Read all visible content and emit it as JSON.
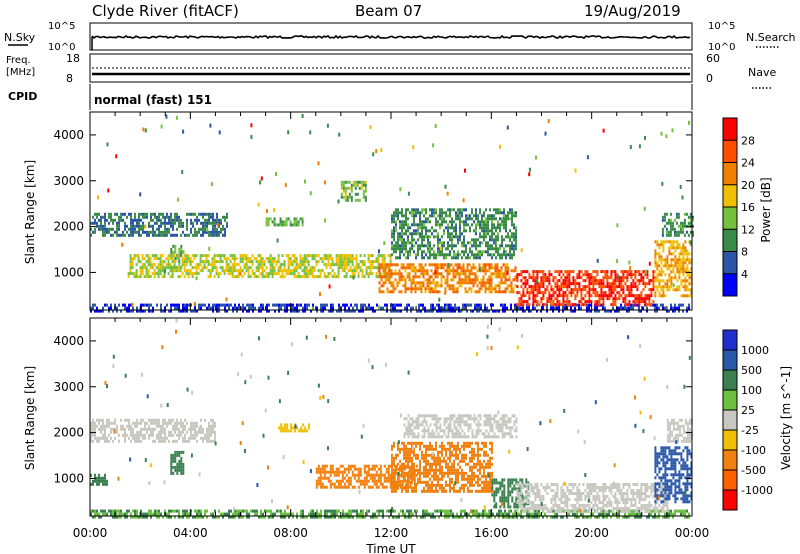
{
  "header": {
    "station": "Clyde River (fitACF)",
    "beam": "Beam 07",
    "date": "19/Aug/2019"
  },
  "panels": {
    "nsky": {
      "left_label": "N.Sky",
      "left_ticks": [
        "10^5",
        "10^0"
      ],
      "right_ticks": [
        "10^5",
        "10^0"
      ],
      "right_label": "N.Search"
    },
    "freq": {
      "left_label_1": "Freq.",
      "left_label_2": "[MHz]",
      "left_ticks": [
        "18",
        "8"
      ],
      "right_ticks": [
        "60",
        "0"
      ],
      "right_label": "Nave"
    },
    "cpid": {
      "left_label": "CPID",
      "mode_text": "normal (fast) 151"
    }
  },
  "colors": {
    "power": [
      "#0000ff",
      "#2c55a8",
      "#3a8a4a",
      "#76c040",
      "#f0c000",
      "#f08000",
      "#ff5000",
      "#ff0000"
    ],
    "velocity": [
      "#2030d0",
      "#2a58a8",
      "#3a8050",
      "#6cc040",
      "#c8c8c0",
      "#c8c8c0",
      "#f0c000",
      "#f08010",
      "#ff6000",
      "#ff0000"
    ]
  },
  "chart_data": [
    {
      "type": "heatmap",
      "name": "power",
      "ylabel": "Slant Range [km]",
      "yticks": [
        "1000",
        "2000",
        "3000",
        "4000"
      ],
      "ylim": [
        180,
        4500
      ],
      "xlim": [
        "00:00",
        "24:00"
      ],
      "colorbar_label": "Power [dB]",
      "colorbar_ticks": [
        "4",
        "8",
        "12",
        "16",
        "20",
        "24",
        "28"
      ],
      "colorbar_range": [
        0,
        32
      ],
      "regions": [
        {
          "t0": 0.0,
          "t1": 23.9,
          "r0": 180,
          "r1": 320,
          "v": 4
        },
        {
          "t0": 0.0,
          "t1": 5.5,
          "r0": 1800,
          "r1": 2300,
          "v": 8
        },
        {
          "t0": 3.2,
          "t1": 3.6,
          "r0": 1100,
          "r1": 1600,
          "v": 12
        },
        {
          "t0": 7.0,
          "t1": 8.5,
          "r0": 2050,
          "r1": 2200,
          "v": 12
        },
        {
          "t0": 10.0,
          "t1": 11.0,
          "r0": 2600,
          "r1": 3000,
          "v": 14
        },
        {
          "t0": 1.5,
          "t1": 12.0,
          "r0": 900,
          "r1": 1400,
          "v": 16
        },
        {
          "t0": 12.0,
          "t1": 17.0,
          "r0": 1300,
          "r1": 2400,
          "v": 10
        },
        {
          "t0": 11.5,
          "t1": 17.0,
          "r0": 600,
          "r1": 1200,
          "v": 22
        },
        {
          "t0": 17.0,
          "t1": 22.5,
          "r0": 300,
          "r1": 1050,
          "v": 28
        },
        {
          "t0": 22.5,
          "t1": 24.0,
          "r0": 500,
          "r1": 1700,
          "v": 20
        },
        {
          "t0": 22.8,
          "t1": 24.0,
          "r0": 1800,
          "r1": 2300,
          "v": 10
        }
      ]
    },
    {
      "type": "heatmap",
      "name": "velocity",
      "ylabel": "Slant Range [km]",
      "yticks": [
        "1000",
        "2000",
        "3000",
        "4000"
      ],
      "ylim": [
        180,
        4500
      ],
      "xlim": [
        "00:00",
        "24:00"
      ],
      "xticks": [
        "00:00",
        "04:00",
        "08:00",
        "12:00",
        "16:00",
        "20:00",
        "00:00"
      ],
      "xlabel": "Time UT",
      "colorbar_label": "Velocity [m s^-1]",
      "colorbar_ticks": [
        "1000",
        "500",
        "100",
        "25",
        "-25",
        "-100",
        "-500",
        "-1000"
      ],
      "regions": [
        {
          "t0": 0.0,
          "t1": 23.9,
          "r0": 180,
          "r1": 320,
          "v": 100
        },
        {
          "t0": 0.0,
          "t1": 5.0,
          "r0": 1800,
          "r1": 2300,
          "v": 0
        },
        {
          "t0": 0.0,
          "t1": 0.7,
          "r0": 850,
          "r1": 1100,
          "v": 300
        },
        {
          "t0": 3.2,
          "t1": 3.7,
          "r0": 1100,
          "r1": 1600,
          "v": 150
        },
        {
          "t0": 7.5,
          "t1": 8.7,
          "r0": 2050,
          "r1": 2200,
          "v": -80
        },
        {
          "t0": 9.0,
          "t1": 13.0,
          "r0": 800,
          "r1": 1300,
          "v": -300
        },
        {
          "t0": 12.0,
          "t1": 16.0,
          "r0": 700,
          "r1": 1800,
          "v": -300
        },
        {
          "t0": 12.5,
          "t1": 17.0,
          "r0": 1900,
          "r1": 2400,
          "v": 0
        },
        {
          "t0": 16.0,
          "t1": 17.5,
          "r0": 400,
          "r1": 1000,
          "v": 300
        },
        {
          "t0": 17.0,
          "t1": 23.0,
          "r0": 300,
          "r1": 900,
          "v": 0
        },
        {
          "t0": 22.5,
          "t1": 24.0,
          "r0": 500,
          "r1": 1700,
          "v": 800
        },
        {
          "t0": 23.0,
          "t1": 24.0,
          "r0": 1800,
          "r1": 2300,
          "v": 0
        }
      ]
    }
  ]
}
